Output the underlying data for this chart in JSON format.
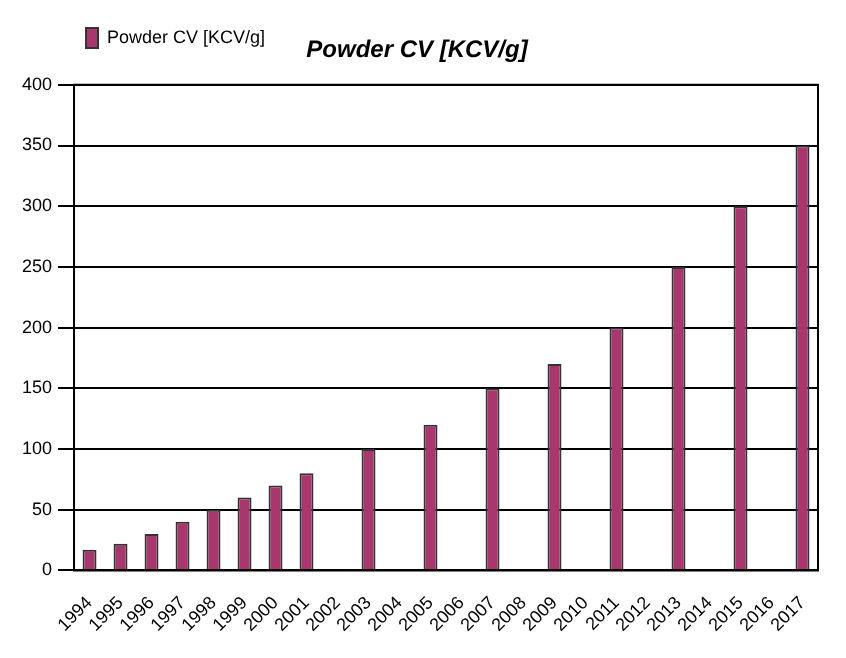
{
  "chart_data": {
    "type": "bar",
    "title": "Powder CV [KCV/g]",
    "categories": [
      "1994",
      "1995",
      "1996",
      "1997",
      "1998",
      "1999",
      "2000",
      "2001",
      "2002",
      "2003",
      "2004",
      "2005",
      "2006",
      "2007",
      "2008",
      "2009",
      "2010",
      "2011",
      "2012",
      "2013",
      "2014",
      "2015",
      "2016",
      "2017"
    ],
    "series": [
      {
        "name": "Powder CV [KCV/g]",
        "color": "#a8376e",
        "values": [
          17,
          22,
          30,
          40,
          50,
          60,
          70,
          80,
          null,
          100,
          null,
          120,
          null,
          150,
          null,
          170,
          null,
          200,
          null,
          250,
          null,
          300,
          null,
          350
        ]
      }
    ],
    "ylim": [
      0,
      400
    ],
    "yticks": [
      0,
      50,
      100,
      150,
      200,
      250,
      300,
      350,
      400
    ],
    "grid": "y",
    "legend": "top left"
  }
}
